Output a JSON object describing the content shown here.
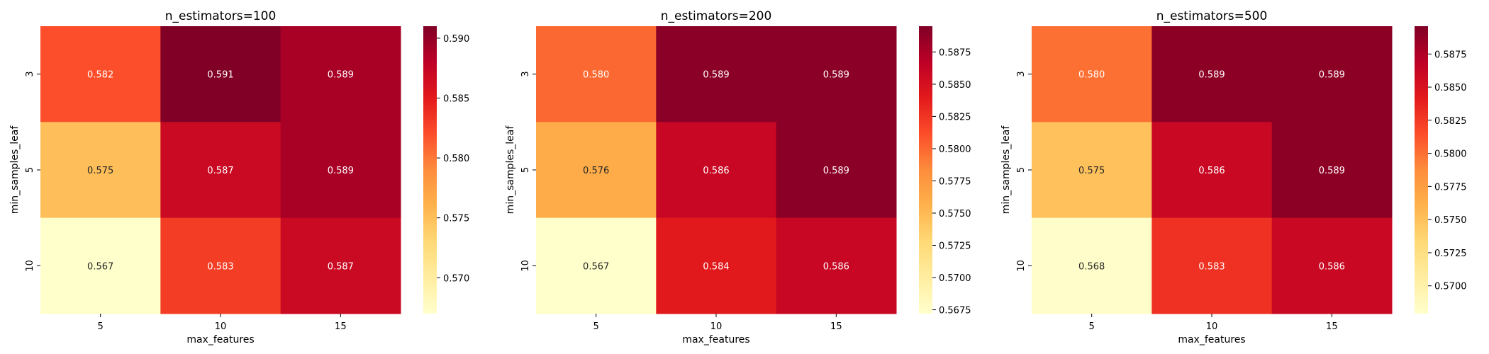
{
  "chart_data": [
    {
      "type": "heatmap",
      "title": "n_estimators=100",
      "xlabel": "max_features",
      "ylabel": "min_samples_leaf",
      "x_categories": [
        "5",
        "10",
        "15"
      ],
      "y_categories": [
        "3",
        "5",
        "10"
      ],
      "values": [
        [
          0.582,
          0.591,
          0.589
        ],
        [
          0.575,
          0.587,
          0.589
        ],
        [
          0.567,
          0.583,
          0.587
        ]
      ],
      "annotations": [
        [
          "0.582",
          "0.591",
          "0.589"
        ],
        [
          "0.575",
          "0.587",
          "0.589"
        ],
        [
          "0.567",
          "0.583",
          "0.587"
        ]
      ],
      "colormap": "YlOrRd",
      "colorbar": {
        "vmin": 0.567,
        "vmax": 0.591,
        "ticks": [
          "0.570",
          "0.575",
          "0.580",
          "0.585",
          "0.590"
        ]
      }
    },
    {
      "type": "heatmap",
      "title": "n_estimators=200",
      "xlabel": "max_features",
      "ylabel": "min_samples_leaf",
      "x_categories": [
        "5",
        "10",
        "15"
      ],
      "y_categories": [
        "3",
        "5",
        "10"
      ],
      "values": [
        [
          0.58,
          0.589,
          0.589
        ],
        [
          0.576,
          0.586,
          0.589
        ],
        [
          0.567,
          0.584,
          0.586
        ]
      ],
      "annotations": [
        [
          "0.580",
          "0.589",
          "0.589"
        ],
        [
          "0.576",
          "0.586",
          "0.589"
        ],
        [
          "0.567",
          "0.584",
          "0.586"
        ]
      ],
      "colormap": "YlOrRd",
      "colorbar": {
        "vmin": 0.5672,
        "vmax": 0.5895,
        "ticks": [
          "0.5675",
          "0.5700",
          "0.5725",
          "0.5750",
          "0.5775",
          "0.5800",
          "0.5825",
          "0.5850",
          "0.5875"
        ]
      }
    },
    {
      "type": "heatmap",
      "title": "n_estimators=500",
      "xlabel": "max_features",
      "ylabel": "min_samples_leaf",
      "x_categories": [
        "5",
        "10",
        "15"
      ],
      "y_categories": [
        "3",
        "5",
        "10"
      ],
      "values": [
        [
          0.58,
          0.589,
          0.589
        ],
        [
          0.575,
          0.586,
          0.589
        ],
        [
          0.568,
          0.583,
          0.586
        ]
      ],
      "annotations": [
        [
          "0.580",
          "0.589",
          "0.589"
        ],
        [
          "0.575",
          "0.586",
          "0.589"
        ],
        [
          "0.568",
          "0.583",
          "0.586"
        ]
      ],
      "colormap": "YlOrRd",
      "colorbar": {
        "vmin": 0.5679,
        "vmax": 0.5896,
        "ticks": [
          "0.5700",
          "0.5725",
          "0.5750",
          "0.5775",
          "0.5800",
          "0.5825",
          "0.5850",
          "0.5875"
        ]
      }
    }
  ]
}
